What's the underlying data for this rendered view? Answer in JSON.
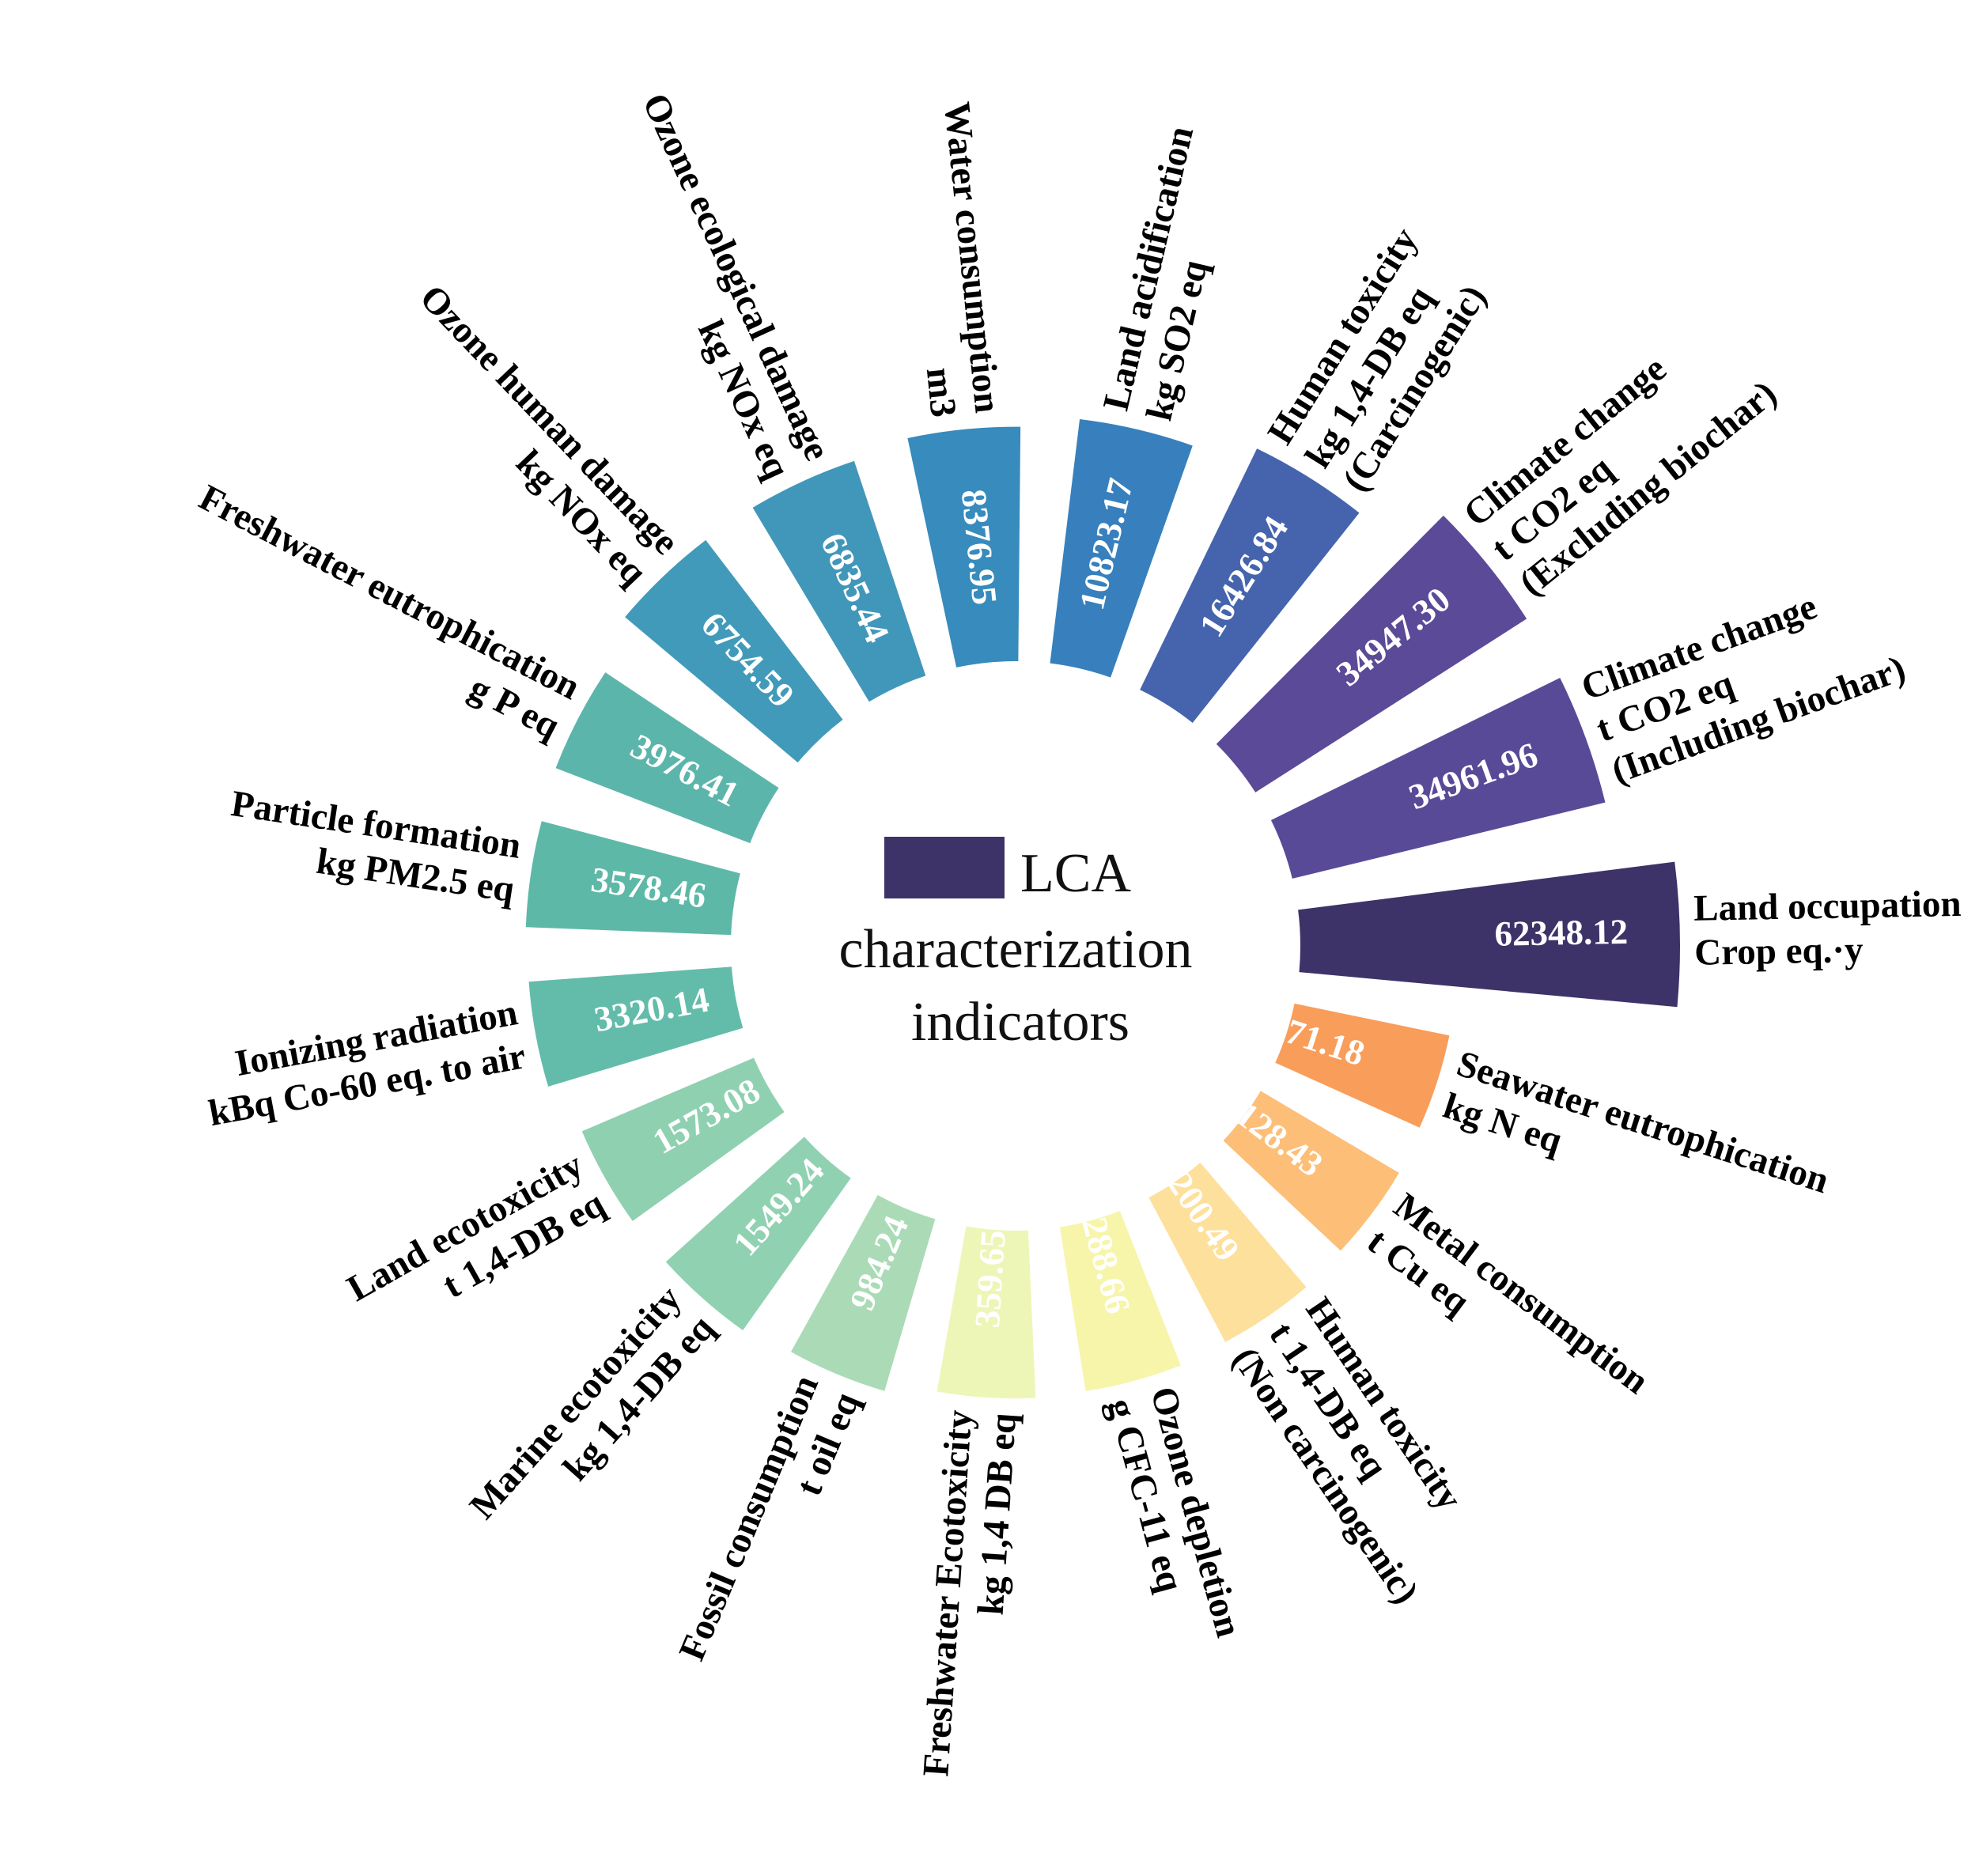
{
  "chart_data": {
    "type": "bar",
    "layout": "circular",
    "title": "",
    "center_legend": {
      "text_lines": [
        "LCA",
        "characterization",
        "indicators"
      ],
      "swatch_color": "#3d3368"
    },
    "categories": [
      {
        "name": "Land occupation",
        "unit": "Crop eq.·y",
        "value": 62348.12,
        "color": "#3d3368"
      },
      {
        "name": "Climate change",
        "unit": "t CO2 eq",
        "extra": "(Including biochar)",
        "value": 34961.96,
        "color": "#594a98"
      },
      {
        "name": "Climate change",
        "unit": "t CO2 eq",
        "extra": "(Excluding biochar)",
        "value": 34947.3,
        "color": "#5b4a97"
      },
      {
        "name": "Human toxicity",
        "unit": "kg 1,4-DB eq",
        "extra": "(Carcinogenic)",
        "value": 16426.84,
        "color": "#4564ad"
      },
      {
        "name": "Land acidification",
        "unit": "kg SO2 eq",
        "value": 10823.17,
        "color": "#3780bd"
      },
      {
        "name": "Water consumption",
        "unit": "m3",
        "value": 8376.95,
        "color": "#378bbd"
      },
      {
        "name": "Ozone ecological damage",
        "unit": "kg NOx eq",
        "value": 6835.44,
        "color": "#4197ba"
      },
      {
        "name": "Ozone human damage",
        "unit": "kg NOx eq",
        "value": 6754.59,
        "color": "#419ab9"
      },
      {
        "name": "Freshwater eutrophication",
        "unit": "g P eq",
        "value": 3976.41,
        "color": "#5cb5aa"
      },
      {
        "name": "Particle formation",
        "unit": "kg PM2.5 eq",
        "value": 3578.46,
        "color": "#5db8a7"
      },
      {
        "name": "Ionizing radiation",
        "unit": "kBq Co-60 eq. to air",
        "value": 3320.14,
        "color": "#63bca9"
      },
      {
        "name": "Land ecotoxicity",
        "unit": "t 1,4-DB eq",
        "value": 1573.08,
        "color": "#8fd0b1"
      },
      {
        "name": "Marine ecotoxicity",
        "unit": "kg 1,4-DB eq",
        "value": 1549.24,
        "color": "#90d1b2"
      },
      {
        "name": "Fossil consumption",
        "unit": "t oil eq",
        "value": 984.24,
        "color": "#aadbb6"
      },
      {
        "name": "Freshwater Ecotoxicity",
        "unit": "kg 1,4 DB eq",
        "value": 359.65,
        "color": "#eef6b7"
      },
      {
        "name": "Ozone depletion",
        "unit": "g CFC-11 eq",
        "value": 288.66,
        "color": "#f7f5aa"
      },
      {
        "name": "Human toxicity",
        "unit": "t 1,4-DB eq",
        "extra": "(Non carcinogenic)",
        "value": 200.49,
        "color": "#fde09b"
      },
      {
        "name": "Metal consumption",
        "unit": "t Cu eq",
        "value": 128.43,
        "color": "#fdbe78"
      },
      {
        "name": "Seawater eutrophication",
        "unit": "kg N eq",
        "value": 71.18,
        "color": "#f99d5a"
      }
    ],
    "value_labels": [
      "62348.12",
      "34961.96",
      "34947.30",
      "16426.84",
      "10823.17",
      "8376.95",
      "6835.44",
      "6754.59",
      "3976.41",
      "3578.46",
      "3320.14",
      "1573.08",
      "1549.24",
      "984.24",
      "359.65",
      "288.66",
      "200.49",
      "128.43",
      "71.18"
    ],
    "scale": "sqrt-like (bar length grows with value)",
    "legend": "center",
    "grid": false
  }
}
